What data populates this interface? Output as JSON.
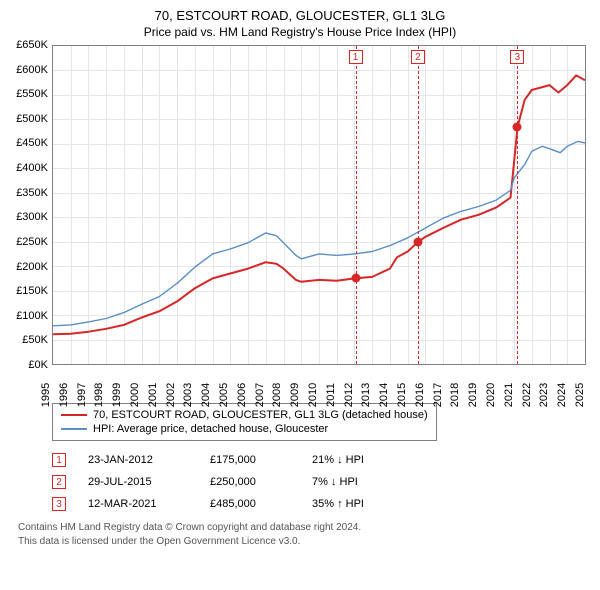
{
  "title": "70, ESTCOURT ROAD, GLOUCESTER, GL1 3LG",
  "subtitle": "Price paid vs. HM Land Registry's House Price Index (HPI)",
  "colors": {
    "series_price": "#d62728",
    "series_hpi": "#5b8fc7",
    "grid": "#e6e6e6",
    "axis": "#808080",
    "text": "#000000",
    "footnote": "#555555",
    "background": "#ffffff"
  },
  "chart": {
    "type": "line",
    "ylim": [
      0,
      650000
    ],
    "ytick_step": 50000,
    "y_prefix": "£",
    "y_suffix": "K",
    "y_divisor": 1000,
    "xlim": [
      1995,
      2025
    ],
    "xticks": [
      1995,
      1996,
      1997,
      1998,
      1999,
      2000,
      2001,
      2002,
      2003,
      2004,
      2005,
      2006,
      2007,
      2008,
      2009,
      2010,
      2011,
      2012,
      2013,
      2014,
      2015,
      2016,
      2017,
      2018,
      2019,
      2020,
      2021,
      2022,
      2023,
      2024,
      2025
    ],
    "series": [
      {
        "id": "price",
        "label": "70, ESTCOURT ROAD, GLOUCESTER, GL1 3LG (detached house)",
        "color": "#d62728",
        "width": 2,
        "data": [
          [
            1995,
            61000
          ],
          [
            1996,
            62000
          ],
          [
            1997,
            66000
          ],
          [
            1998,
            72000
          ],
          [
            1999,
            80000
          ],
          [
            2000,
            95000
          ],
          [
            2001,
            108000
          ],
          [
            2002,
            128000
          ],
          [
            2003,
            155000
          ],
          [
            2004,
            175000
          ],
          [
            2005,
            185000
          ],
          [
            2006,
            195000
          ],
          [
            2007,
            208000
          ],
          [
            2007.6,
            205000
          ],
          [
            2008,
            195000
          ],
          [
            2008.7,
            172000
          ],
          [
            2009,
            168000
          ],
          [
            2010,
            172000
          ],
          [
            2011,
            170000
          ],
          [
            2012,
            175000
          ],
          [
            2013,
            178000
          ],
          [
            2014,
            195000
          ],
          [
            2014.4,
            218000
          ],
          [
            2015,
            230000
          ],
          [
            2015.6,
            250000
          ],
          [
            2016,
            260000
          ],
          [
            2017,
            278000
          ],
          [
            2018,
            295000
          ],
          [
            2019,
            305000
          ],
          [
            2020,
            320000
          ],
          [
            2020.8,
            340000
          ],
          [
            2021.2,
            485000
          ],
          [
            2021.6,
            540000
          ],
          [
            2022,
            560000
          ],
          [
            2023,
            570000
          ],
          [
            2023.5,
            555000
          ],
          [
            2024,
            570000
          ],
          [
            2024.5,
            590000
          ],
          [
            2025,
            580000
          ]
        ]
      },
      {
        "id": "hpi",
        "label": "HPI: Average price, detached house, Gloucester",
        "color": "#5b8fc7",
        "width": 1.4,
        "data": [
          [
            1995,
            78000
          ],
          [
            1996,
            80000
          ],
          [
            1997,
            86000
          ],
          [
            1998,
            93000
          ],
          [
            1999,
            105000
          ],
          [
            2000,
            122000
          ],
          [
            2001,
            138000
          ],
          [
            2002,
            165000
          ],
          [
            2003,
            198000
          ],
          [
            2004,
            225000
          ],
          [
            2005,
            235000
          ],
          [
            2006,
            248000
          ],
          [
            2007,
            268000
          ],
          [
            2007.6,
            262000
          ],
          [
            2008,
            248000
          ],
          [
            2008.7,
            222000
          ],
          [
            2009,
            215000
          ],
          [
            2010,
            225000
          ],
          [
            2011,
            222000
          ],
          [
            2012,
            225000
          ],
          [
            2013,
            230000
          ],
          [
            2014,
            242000
          ],
          [
            2015,
            258000
          ],
          [
            2016,
            278000
          ],
          [
            2017,
            298000
          ],
          [
            2018,
            312000
          ],
          [
            2019,
            322000
          ],
          [
            2020,
            335000
          ],
          [
            2020.8,
            355000
          ],
          [
            2021,
            380000
          ],
          [
            2021.6,
            408000
          ],
          [
            2022,
            435000
          ],
          [
            2022.6,
            445000
          ],
          [
            2023,
            440000
          ],
          [
            2023.6,
            432000
          ],
          [
            2024,
            445000
          ],
          [
            2024.6,
            455000
          ],
          [
            2025,
            452000
          ]
        ]
      }
    ],
    "markers": [
      {
        "n": "1",
        "x": 2012.06,
        "y": 175000,
        "color": "#d62728"
      },
      {
        "n": "2",
        "x": 2015.58,
        "y": 250000,
        "color": "#d62728"
      },
      {
        "n": "3",
        "x": 2021.19,
        "y": 485000,
        "color": "#d62728"
      }
    ]
  },
  "legend": [
    {
      "color": "#d62728",
      "label": "70, ESTCOURT ROAD, GLOUCESTER, GL1 3LG (detached house)"
    },
    {
      "color": "#5b8fc7",
      "label": "HPI: Average price, detached house, Gloucester"
    }
  ],
  "events": [
    {
      "n": "1",
      "date": "23-JAN-2012",
      "price": "£175,000",
      "delta": "21% ↓ HPI",
      "color": "#d62728"
    },
    {
      "n": "2",
      "date": "29-JUL-2015",
      "price": "£250,000",
      "delta": "7% ↓ HPI",
      "color": "#d62728"
    },
    {
      "n": "3",
      "date": "12-MAR-2021",
      "price": "£485,000",
      "delta": "35% ↑ HPI",
      "color": "#d62728"
    }
  ],
  "footnote_line1": "Contains HM Land Registry data © Crown copyright and database right 2024.",
  "footnote_line2": "This data is licensed under the Open Government Licence v3.0."
}
